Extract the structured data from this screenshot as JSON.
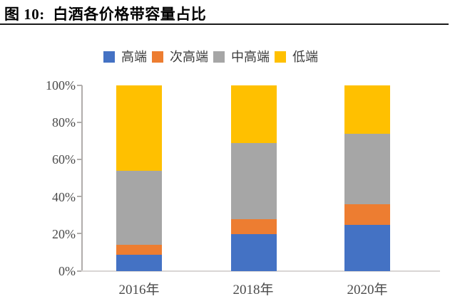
{
  "figure": {
    "title": "图 10:  白酒各价格带容量占比"
  },
  "colors": {
    "high_end_blue": "#4472C4",
    "sub_high_end_orange": "#ED7D31",
    "mid_high_end_gray": "#A6A6A6",
    "low_end_yellow": "#FFC000",
    "axis_gray": "#B0ADAB",
    "baseline_gray": "#D9D6D4",
    "tick_text": "#4A4A4A",
    "title_text": "#000000"
  },
  "chart_data": {
    "type": "bar",
    "stacked": true,
    "stacked_100_percent": true,
    "title": "白酒各价格带容量占比",
    "categories": [
      "2016年",
      "2018年",
      "2020年"
    ],
    "series": [
      {
        "name": "高端",
        "color": "#4472C4",
        "values": [
          9,
          20,
          25
        ]
      },
      {
        "name": "次高端",
        "color": "#ED7D31",
        "values": [
          5,
          8,
          11
        ]
      },
      {
        "name": "中高端",
        "color": "#A6A6A6",
        "values": [
          40,
          41,
          38
        ]
      },
      {
        "name": "低端",
        "color": "#FFC000",
        "values": [
          46,
          31,
          26
        ]
      }
    ],
    "xlabel": "",
    "ylabel": "",
    "ylim": [
      0,
      100
    ],
    "y_ticks": [
      "0%",
      "20%",
      "40%",
      "60%",
      "80%",
      "100%"
    ],
    "grid": false,
    "legend_position": "top"
  }
}
